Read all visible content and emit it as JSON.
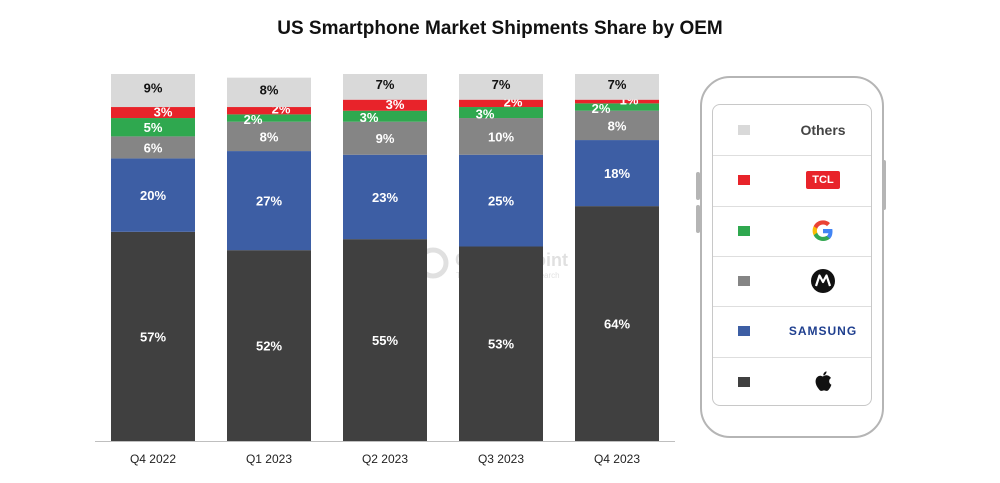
{
  "chart_data": {
    "type": "bar",
    "stacked": true,
    "title": "US Smartphone Market Shipments Share by OEM",
    "categories": [
      "Q4 2022",
      "Q1 2023",
      "Q2 2023",
      "Q3 2023",
      "Q4 2023"
    ],
    "ylim": [
      0,
      100
    ],
    "grid": false,
    "legend_position": "right",
    "series": [
      {
        "name": "Apple",
        "color": "#404040",
        "label_color": "#ffffff",
        "values": [
          57,
          52,
          55,
          53,
          64
        ]
      },
      {
        "name": "Samsung",
        "color": "#3d5ea4",
        "label_color": "#ffffff",
        "values": [
          20,
          27,
          23,
          25,
          18
        ]
      },
      {
        "name": "Motorola",
        "color": "#858585",
        "label_color": "#ffffff",
        "values": [
          6,
          8,
          9,
          10,
          8
        ]
      },
      {
        "name": "Google",
        "color": "#2fa84f",
        "label_color": "#ffffff",
        "values": [
          5,
          2,
          3,
          3,
          2
        ]
      },
      {
        "name": "TCL",
        "color": "#e8232a",
        "label_color": "#ffffff",
        "values": [
          3,
          2,
          3,
          2,
          1
        ]
      },
      {
        "name": "Others",
        "color": "#d9d9d9",
        "label_color": "#111111",
        "values": [
          9,
          8,
          7,
          7,
          7
        ]
      }
    ],
    "value_suffix": "%"
  },
  "legend": {
    "items": [
      {
        "name": "Others",
        "text": "Others",
        "icon": "text",
        "color": "#d9d9d9"
      },
      {
        "name": "TCL",
        "text": "TCL",
        "icon": "tcl-logo",
        "color": "#e8232a"
      },
      {
        "name": "Google",
        "text": "",
        "icon": "google-logo",
        "color": "#2fa84f"
      },
      {
        "name": "Motorola",
        "text": "",
        "icon": "motorola-logo",
        "color": "#858585"
      },
      {
        "name": "Samsung",
        "text": "SAMSUNG",
        "icon": "samsung-logo",
        "color": "#3d5ea4"
      },
      {
        "name": "Apple",
        "text": "",
        "icon": "apple-logo",
        "color": "#404040"
      }
    ]
  },
  "watermark": {
    "text": "Counterpoint",
    "subtext": "Technology Market Research"
  }
}
